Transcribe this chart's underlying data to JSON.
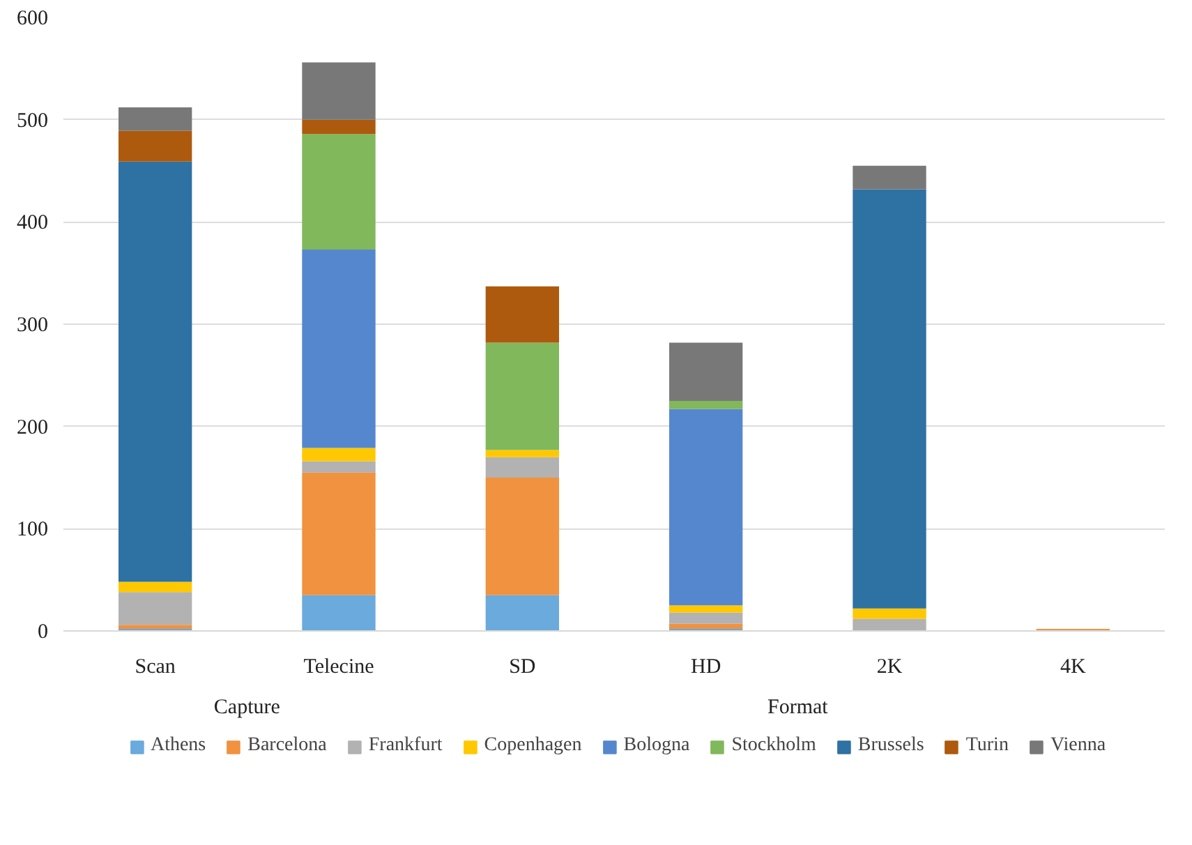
{
  "chart_data": {
    "type": "bar",
    "stacked": true,
    "categories": [
      "Scan",
      "Telecine",
      "SD",
      "HD",
      "2K",
      "4K"
    ],
    "annotations": [
      "Capture",
      "Format"
    ],
    "ylim": [
      0,
      600
    ],
    "yticks": [
      0,
      100,
      200,
      300,
      400,
      500,
      600
    ],
    "grid": "y",
    "legend": "bottom",
    "series": [
      {
        "name": "Athens",
        "color": "#6aaadc",
        "values": [
          2,
          35,
          35,
          2,
          0,
          0
        ]
      },
      {
        "name": "Barcelona",
        "color": "#f09240",
        "values": [
          4,
          120,
          115,
          5,
          0,
          2
        ]
      },
      {
        "name": "Frankfurt",
        "color": "#b2b2b2",
        "values": [
          32,
          11,
          20,
          11,
          12,
          0
        ]
      },
      {
        "name": "Copenhagen",
        "color": "#ffc800",
        "values": [
          10,
          13,
          7,
          7,
          10,
          0
        ]
      },
      {
        "name": "Bologna",
        "color": "#5587cf",
        "values": [
          0,
          194,
          0,
          192,
          0,
          0
        ]
      },
      {
        "name": "Stockholm",
        "color": "#80b85b",
        "values": [
          0,
          113,
          105,
          8,
          0,
          0
        ]
      },
      {
        "name": "Brussels",
        "color": "#2e71a3",
        "values": [
          411,
          0,
          0,
          0,
          410,
          0
        ]
      },
      {
        "name": "Turin",
        "color": "#ad5a0e",
        "values": [
          30,
          14,
          55,
          0,
          0,
          0
        ]
      },
      {
        "name": "Vienna",
        "color": "#787878",
        "values": [
          23,
          56,
          0,
          57,
          23,
          0
        ]
      }
    ]
  }
}
